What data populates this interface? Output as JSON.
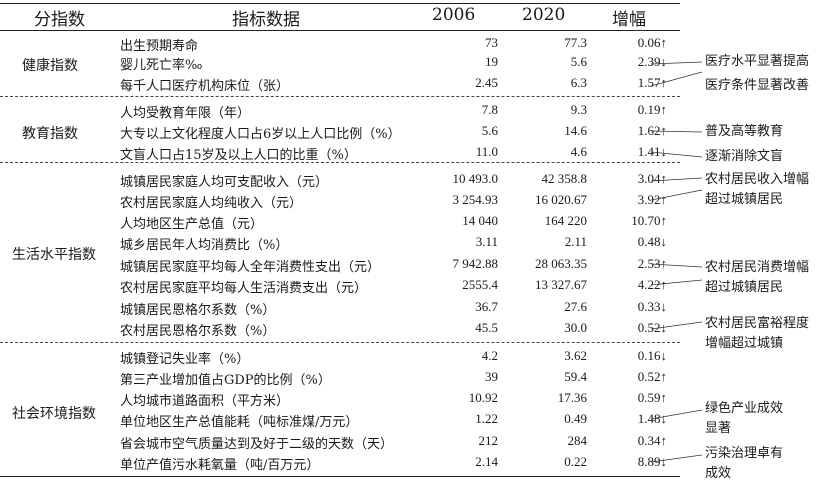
{
  "headers": {
    "category": "分指数",
    "indicator": "指标数据",
    "y2006": "2006",
    "y2020": "2020",
    "change": "增幅"
  },
  "categories": [
    {
      "label": "健康指数"
    },
    {
      "label": "教育指数"
    },
    {
      "label": "生活水平指数"
    },
    {
      "label": "社会环境指数"
    }
  ],
  "rows": [
    {
      "name": "出生预期寿命",
      "v2006": "73",
      "v2020": "77.3",
      "change": "0.06↑"
    },
    {
      "name": "婴儿死亡率‰",
      "v2006": "19",
      "v2020": "5.6",
      "change": "2.39↓"
    },
    {
      "name": "每千人口医疗机构床位（张）",
      "v2006": "2.45",
      "v2020": "6.3",
      "change": "1.57↑"
    },
    {
      "name": "人均受教育年限（年）",
      "v2006": "7.8",
      "v2020": "9.3",
      "change": "0.19↑"
    },
    {
      "name": "大专以上文化程度人口占6岁以上人口比例（%）",
      "v2006": "5.6",
      "v2020": "14.6",
      "change": "1.62↑"
    },
    {
      "name": "文盲人口占15岁及以上人口的比重（%）",
      "v2006": "11.0",
      "v2020": "4.6",
      "change": "1.41↓"
    },
    {
      "name": "城镇居民家庭人均可支配收入（元）",
      "v2006": "10 493.0",
      "v2020": "42 358.8",
      "change": "3.04↑"
    },
    {
      "name": "农村居民家庭人均纯收入（元）",
      "v2006": "3 254.93",
      "v2020": "16 020.67",
      "change": "3.92↑"
    },
    {
      "name": "人均地区生产总值（元）",
      "v2006": "14 040",
      "v2020": "164 220",
      "change": "10.70↑"
    },
    {
      "name": "城乡居民年人均消费比（%）",
      "v2006": "3.11",
      "v2020": "2.11",
      "change": "0.48↓"
    },
    {
      "name": "城镇居民家庭平均每人全年消费性支出（元）",
      "v2006": "7 942.88",
      "v2020": "28 063.35",
      "change": "2.53↑"
    },
    {
      "name": "农村居民家庭平均每人生活消费支出（元）",
      "v2006": "2555.4",
      "v2020": "13 327.67",
      "change": "4.22↑"
    },
    {
      "name": "城镇居民恩格尔系数（%）",
      "v2006": "36.7",
      "v2020": "27.6",
      "change": "0.33↓"
    },
    {
      "name": "农村居民恩格尔系数（%）",
      "v2006": "45.5",
      "v2020": "30.0",
      "change": "0.52↓"
    },
    {
      "name": "城镇登记失业率（%）",
      "v2006": "4.2",
      "v2020": "3.62",
      "change": "0.16↓"
    },
    {
      "name": "第三产业增加值占GDP的比例（%）",
      "v2006": "39",
      "v2020": "59.4",
      "change": "0.52↑"
    },
    {
      "name": "人均城市道路面积（平方米）",
      "v2006": "10.92",
      "v2020": "17.36",
      "change": "0.59↑"
    },
    {
      "name": "单位地区生产总值能耗（吨标准煤/万元）",
      "v2006": "1.22",
      "v2020": "0.49",
      "change": "1.48↓"
    },
    {
      "name": "省会城市空气质量达到及好于二级的天数（天）",
      "v2006": "212",
      "v2020": "284",
      "change": "0.34↑"
    },
    {
      "name": "单位产值污水耗氧量（吨/百万元）",
      "v2006": "2.14",
      "v2020": "0.22",
      "change": "8.89↓"
    }
  ],
  "notes": [
    {
      "text": "医疗水平显著提高"
    },
    {
      "text": "医疗条件显著改善"
    },
    {
      "text": "普及高等教育"
    },
    {
      "text": "逐渐消除文盲"
    },
    {
      "text": "农村居民收入增幅\n超过城镇居民"
    },
    {
      "text": "农村居民消费增幅\n超过城镇居民"
    },
    {
      "text": "农村居民富裕程度\n增幅超过城镇"
    },
    {
      "text": "绿色产业成效\n显著"
    },
    {
      "text": "污染治理卓有\n成效"
    }
  ]
}
